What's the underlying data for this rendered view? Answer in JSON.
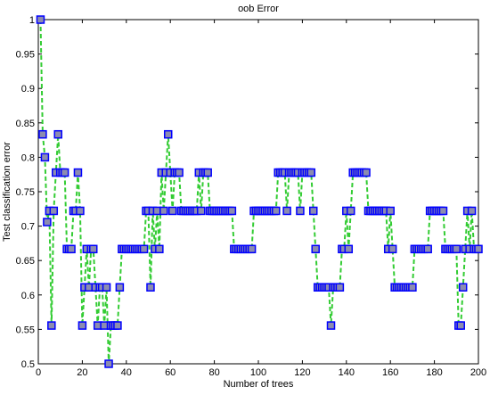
{
  "chart_data": {
    "type": "line",
    "title": "oob Error",
    "xlabel": "Number of trees",
    "ylabel": "Test classification error",
    "x": [
      1,
      2,
      3,
      4,
      5,
      6,
      7,
      8,
      9,
      10,
      11,
      12,
      13,
      14,
      15,
      16,
      17,
      18,
      19,
      20,
      21,
      22,
      23,
      24,
      25,
      26,
      27,
      28,
      29,
      30,
      31,
      32,
      33,
      34,
      35,
      36,
      37,
      38,
      39,
      40,
      41,
      42,
      43,
      44,
      45,
      46,
      47,
      48,
      49,
      50,
      51,
      52,
      53,
      54,
      55,
      56,
      57,
      58,
      59,
      60,
      61,
      62,
      63,
      64,
      65,
      66,
      67,
      68,
      69,
      70,
      71,
      72,
      73,
      74,
      75,
      76,
      77,
      78,
      79,
      80,
      81,
      82,
      83,
      84,
      85,
      86,
      87,
      88,
      89,
      90,
      91,
      92,
      93,
      94,
      95,
      96,
      97,
      98,
      99,
      100,
      101,
      102,
      103,
      104,
      105,
      106,
      107,
      108,
      109,
      110,
      111,
      112,
      113,
      114,
      115,
      116,
      117,
      118,
      119,
      120,
      121,
      122,
      123,
      124,
      125,
      126,
      127,
      128,
      129,
      130,
      131,
      132,
      133,
      134,
      135,
      136,
      137,
      138,
      139,
      140,
      141,
      142,
      143,
      144,
      145,
      146,
      147,
      148,
      149,
      150,
      151,
      152,
      153,
      154,
      155,
      156,
      157,
      158,
      159,
      160,
      161,
      162,
      163,
      164,
      165,
      166,
      167,
      168,
      169,
      170,
      171,
      172,
      173,
      174,
      175,
      176,
      177,
      178,
      179,
      180,
      181,
      182,
      183,
      184,
      185,
      186,
      187,
      188,
      189,
      190,
      191,
      192,
      193,
      194,
      195,
      196,
      197,
      198,
      199,
      200
    ],
    "series": [
      {
        "name": "oob Error",
        "color": "#33cc33",
        "marker_edge": "#0000ff",
        "marker_face": "#8c8cb0",
        "values": [
          1,
          0.8333,
          0.8,
          0.7059,
          0.7222,
          0.5556,
          0.7222,
          0.7778,
          0.8333,
          0.7778,
          0.7778,
          0.7778,
          0.6667,
          0.6667,
          0.6667,
          0.7222,
          0.7222,
          0.7778,
          0.7222,
          0.5556,
          0.6111,
          0.6667,
          0.6111,
          0.6667,
          0.6667,
          0.6111,
          0.5556,
          0.6111,
          0.6111,
          0.5556,
          0.6111,
          0.5,
          0.5556,
          0.5556,
          0.5556,
          0.5556,
          0.6111,
          0.6667,
          0.6667,
          0.6667,
          0.6667,
          0.6667,
          0.6667,
          0.6667,
          0.6667,
          0.6667,
          0.6667,
          0.6667,
          0.7222,
          0.7222,
          0.6111,
          0.7222,
          0.6667,
          0.7222,
          0.6667,
          0.7778,
          0.7222,
          0.7778,
          0.8333,
          0.7778,
          0.7222,
          0.7778,
          0.7778,
          0.7778,
          0.7222,
          0.7222,
          0.7222,
          0.7222,
          0.7222,
          0.7222,
          0.7222,
          0.7222,
          0.7778,
          0.7222,
          0.7778,
          0.7778,
          0.7778,
          0.7222,
          0.7222,
          0.7222,
          0.7222,
          0.7222,
          0.7222,
          0.7222,
          0.7222,
          0.7222,
          0.7222,
          0.7222,
          0.6667,
          0.6667,
          0.6667,
          0.6667,
          0.6667,
          0.6667,
          0.6667,
          0.6667,
          0.6667,
          0.7222,
          0.7222,
          0.7222,
          0.7222,
          0.7222,
          0.7222,
          0.7222,
          0.7222,
          0.7222,
          0.7222,
          0.7222,
          0.7778,
          0.7778,
          0.7778,
          0.7778,
          0.7222,
          0.7778,
          0.7778,
          0.7778,
          0.7778,
          0.7778,
          0.7222,
          0.7778,
          0.7778,
          0.7778,
          0.7778,
          0.7778,
          0.7222,
          0.6667,
          0.6111,
          0.6111,
          0.6111,
          0.6111,
          0.6111,
          0.6111,
          0.5556,
          0.6111,
          0.6111,
          0.6111,
          0.6111,
          0.6667,
          0.6667,
          0.7222,
          0.6667,
          0.7222,
          0.7778,
          0.7778,
          0.7778,
          0.7778,
          0.7778,
          0.7778,
          0.7778,
          0.7222,
          0.7222,
          0.7222,
          0.7222,
          0.7222,
          0.7222,
          0.7222,
          0.7222,
          0.7222,
          0.6667,
          0.7222,
          0.6667,
          0.6111,
          0.6111,
          0.6111,
          0.6111,
          0.6111,
          0.6111,
          0.6111,
          0.6111,
          0.6111,
          0.6667,
          0.6667,
          0.6667,
          0.6667,
          0.6667,
          0.6667,
          0.6667,
          0.7222,
          0.7222,
          0.7222,
          0.7222,
          0.7222,
          0.7222,
          0.7222,
          0.6667,
          0.6667,
          0.6667,
          0.6667,
          0.6667,
          0.6667,
          0.5556,
          0.5556,
          0.6111,
          0.6667,
          0.7222,
          0.6667,
          0.7222,
          0.6667,
          0.6667,
          0.6667
        ]
      }
    ],
    "xlim": [
      0,
      200
    ],
    "xticks": [
      0,
      20,
      40,
      60,
      80,
      100,
      120,
      140,
      160,
      180,
      200
    ],
    "ylim": [
      0.5,
      1
    ],
    "yticks": [
      0.5,
      0.55,
      0.6,
      0.65,
      0.7,
      0.75,
      0.8,
      0.85,
      0.9,
      0.95,
      1
    ]
  }
}
